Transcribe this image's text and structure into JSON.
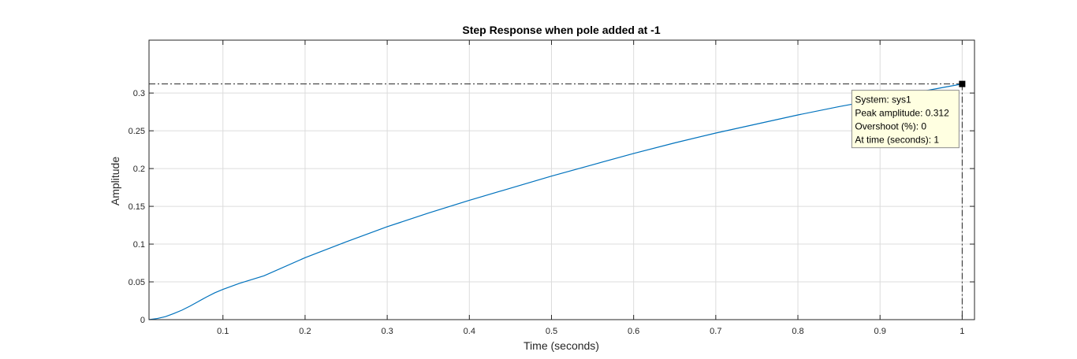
{
  "chart_data": {
    "type": "line",
    "title": "Step Response when pole added at -1",
    "xlabel": "Time (seconds)",
    "ylabel": "Amplitude",
    "xlim": [
      0.01,
      1.015
    ],
    "ylim": [
      0,
      0.37
    ],
    "grid": true,
    "x_ticks": [
      0.1,
      0.2,
      0.3,
      0.4,
      0.5,
      0.6,
      0.7,
      0.8,
      0.9,
      1
    ],
    "x_tick_labels": [
      "0.1",
      "0.2",
      "0.3",
      "0.4",
      "0.5",
      "0.6",
      "0.7",
      "0.8",
      "0.9",
      "1"
    ],
    "y_ticks": [
      0,
      0.05,
      0.1,
      0.15,
      0.2,
      0.25,
      0.3
    ],
    "y_tick_labels": [
      "0",
      "0.05",
      "0.1",
      "0.15",
      "0.2",
      "0.25",
      "0.3"
    ],
    "colors": {
      "line": "#0072BD",
      "grid": "#dcdcdc",
      "axes": "#262626",
      "marker": "#000000",
      "tip_bg": "#ffffe1",
      "tip_border": "#8c8c8c"
    },
    "series": [
      {
        "x": [
          0.01,
          0.02,
          0.03,
          0.04,
          0.05,
          0.06,
          0.07,
          0.08,
          0.09,
          0.1,
          0.12,
          0.15,
          0.2,
          0.25,
          0.3,
          0.35,
          0.4,
          0.45,
          0.5,
          0.55,
          0.6,
          0.65,
          0.7,
          0.75,
          0.8,
          0.85,
          0.9,
          0.95,
          1.0
        ],
        "y": [
          0,
          0.0015,
          0.004,
          0.008,
          0.0125,
          0.018,
          0.024,
          0.03,
          0.0355,
          0.04,
          0.048,
          0.058,
          0.082,
          0.103,
          0.123,
          0.141,
          0.158,
          0.174,
          0.19,
          0.205,
          0.22,
          0.234,
          0.247,
          0.259,
          0.271,
          0.282,
          0.292,
          0.302,
          0.312
        ]
      }
    ],
    "annotation": {
      "x": 1,
      "y": 0.312,
      "lines": [
        "System: sys1",
        "Peak amplitude: 0.312",
        "Overshoot (%): 0",
        "At time (seconds): 1"
      ]
    }
  }
}
